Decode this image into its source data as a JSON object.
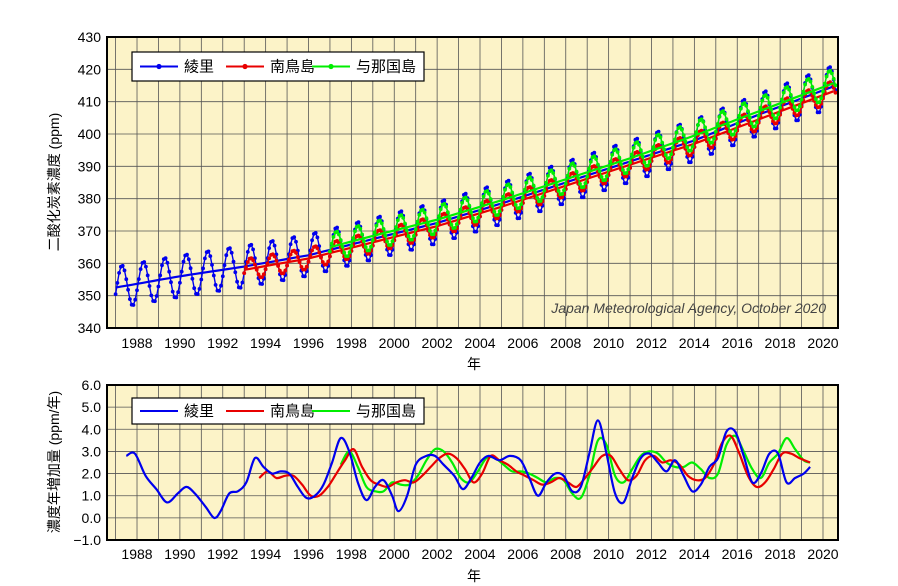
{
  "colors": {
    "background": "#fcf3c8",
    "grid": "#555555",
    "frame": "#000000",
    "ryori": "#0000ee",
    "minamitorishima": "#e80000",
    "yonaguni": "#00ee00"
  },
  "chart_data": [
    {
      "type": "line",
      "xlabel": "年",
      "ylabel": "二酸化炭素濃度 (ppm)",
      "credit": "Japan Meteorological Agency, October 2020",
      "xlim": [
        1986.6,
        2020.7
      ],
      "ylim": [
        340,
        430
      ],
      "grid": true,
      "legend_position": "top-left",
      "x_ticks": [
        "1988",
        "1990",
        "1992",
        "1994",
        "1996",
        "1998",
        "2000",
        "2002",
        "2004",
        "2006",
        "2008",
        "2010",
        "2012",
        "2014",
        "2016",
        "2018",
        "2020"
      ],
      "y_ticks": [
        "340",
        "350",
        "360",
        "370",
        "380",
        "390",
        "400",
        "410",
        "420",
        "430"
      ],
      "series_style": "monthly mean with markers, plus smoothed deseasonalized trend line",
      "series": [
        {
          "name": "綾里",
          "color": "#0000ee",
          "marker": "circle",
          "start": 1987.0,
          "end": 2020.6,
          "trend_points": [
            [
              1987.0,
              352.5
            ],
            [
              1990.0,
              356.0
            ],
            [
              1993.0,
              359.0
            ],
            [
              1996.0,
              362.5
            ],
            [
              1999.0,
              367.5
            ],
            [
              2002.0,
              372.5
            ],
            [
              2005.0,
              378.5
            ],
            [
              2008.0,
              385.0
            ],
            [
              2011.0,
              391.5
            ],
            [
              2014.0,
              398.0
            ],
            [
              2017.0,
              406.0
            ],
            [
              2020.6,
              415.0
            ]
          ],
          "seasonal_amplitude": 6.5
        },
        {
          "name": "南鳥島",
          "color": "#e80000",
          "marker": "circle",
          "start": 1993.0,
          "end": 2020.6,
          "trend_points": [
            [
              1993.0,
              358.0
            ],
            [
              1996.0,
              361.5
            ],
            [
              1999.0,
              366.5
            ],
            [
              2002.0,
              371.5
            ],
            [
              2005.0,
              377.5
            ],
            [
              2008.0,
              384.0
            ],
            [
              2011.0,
              390.5
            ],
            [
              2014.0,
              397.0
            ],
            [
              2017.0,
              404.5
            ],
            [
              2020.6,
              413.5
            ]
          ],
          "seasonal_amplitude": 3.3
        },
        {
          "name": "与那国島",
          "color": "#00ee00",
          "marker": "circle",
          "start": 1997.0,
          "end": 2020.6,
          "trend_points": [
            [
              1997.0,
              365.0
            ],
            [
              1999.0,
              368.5
            ],
            [
              2002.0,
              373.5
            ],
            [
              2005.0,
              379.5
            ],
            [
              2008.0,
              386.0
            ],
            [
              2011.0,
              392.5
            ],
            [
              2014.0,
              399.5
            ],
            [
              2017.0,
              407.0
            ],
            [
              2020.6,
              416.0
            ]
          ],
          "seasonal_amplitude": 4.3
        }
      ]
    },
    {
      "type": "line",
      "xlabel": "年",
      "ylabel": "濃度年増加量 (ppm/年)",
      "xlim": [
        1986.6,
        2020.7
      ],
      "ylim": [
        -1.0,
        6.0
      ],
      "grid": true,
      "legend_position": "top-left",
      "x_ticks": [
        "1988",
        "1990",
        "1992",
        "1994",
        "1996",
        "1998",
        "2000",
        "2002",
        "2004",
        "2006",
        "2008",
        "2010",
        "2012",
        "2014",
        "2016",
        "2018",
        "2020"
      ],
      "y_ticks": [
        "−1.0",
        "0.0",
        "1.0",
        "2.0",
        "3.0",
        "4.0",
        "5.0",
        "6.0"
      ],
      "series": [
        {
          "name": "綾里",
          "color": "#0000ee",
          "x": [
            1987.5,
            1987.9,
            1988.4,
            1988.9,
            1989.4,
            1989.9,
            1990.3,
            1990.7,
            1991.2,
            1991.6,
            1991.9,
            1992.3,
            1992.7,
            1993.1,
            1993.5,
            1993.9,
            1994.3,
            1994.7,
            1995.1,
            1995.5,
            1995.9,
            1996.3,
            1996.7,
            1997.1,
            1997.5,
            1997.9,
            1998.3,
            1998.7,
            1999.1,
            1999.5,
            1999.9,
            2000.2,
            2000.6,
            2001.0,
            2001.5,
            2001.9,
            2002.3,
            2002.8,
            2003.2,
            2003.6,
            2004.0,
            2004.4,
            2004.9,
            2005.4,
            2005.9,
            2006.3,
            2006.7,
            2007.1,
            2007.5,
            2007.9,
            2008.3,
            2008.7,
            2009.1,
            2009.5,
            2009.9,
            2010.3,
            2010.7,
            2011.1,
            2011.5,
            2011.9,
            2012.3,
            2012.7,
            2013.1,
            2013.5,
            2013.9,
            2014.3,
            2014.7,
            2015.1,
            2015.5,
            2015.9,
            2016.3,
            2016.7,
            2017.1,
            2017.5,
            2017.9,
            2018.3,
            2018.7,
            2019.1,
            2019.4
          ],
          "values": [
            2.8,
            2.9,
            1.9,
            1.3,
            0.7,
            1.1,
            1.4,
            1.1,
            0.5,
            0.0,
            0.3,
            1.1,
            1.2,
            1.6,
            2.7,
            2.3,
            2.0,
            2.1,
            2.0,
            1.4,
            0.9,
            1.0,
            1.5,
            2.5,
            3.6,
            3.0,
            1.6,
            0.8,
            1.4,
            1.7,
            1.0,
            0.3,
            1.0,
            2.4,
            2.8,
            2.8,
            2.4,
            1.9,
            1.3,
            1.8,
            2.5,
            2.8,
            2.6,
            2.8,
            2.6,
            1.8,
            1.0,
            1.6,
            2.0,
            1.9,
            1.2,
            1.4,
            2.9,
            4.4,
            2.9,
            1.1,
            0.7,
            1.8,
            2.7,
            2.9,
            2.5,
            2.1,
            2.6,
            1.9,
            1.2,
            1.5,
            2.3,
            2.7,
            3.9,
            3.9,
            2.8,
            1.6,
            2.0,
            2.9,
            2.9,
            1.6,
            1.8,
            2.0,
            2.3
          ]
        },
        {
          "name": "南鳥島",
          "color": "#e80000",
          "x": [
            1993.7,
            1994.1,
            1994.5,
            1994.9,
            1995.3,
            1995.7,
            1996.1,
            1996.5,
            1996.9,
            1997.3,
            1997.7,
            1998.1,
            1998.5,
            1998.9,
            1999.3,
            1999.7,
            2000.1,
            2000.5,
            2000.9,
            2001.3,
            2001.7,
            2002.1,
            2002.5,
            2002.9,
            2003.3,
            2003.7,
            2004.1,
            2004.5,
            2004.9,
            2005.3,
            2005.7,
            2006.1,
            2006.5,
            2006.9,
            2007.3,
            2007.7,
            2008.1,
            2008.5,
            2008.9,
            2009.3,
            2009.7,
            2010.1,
            2010.5,
            2010.9,
            2011.3,
            2011.7,
            2012.1,
            2012.5,
            2012.9,
            2013.3,
            2013.7,
            2014.1,
            2014.5,
            2014.9,
            2015.3,
            2015.7,
            2016.1,
            2016.5,
            2016.9,
            2017.3,
            2017.7,
            2018.1,
            2018.5,
            2018.9,
            2019.4
          ],
          "values": [
            1.8,
            2.1,
            1.8,
            1.9,
            1.9,
            1.5,
            1.0,
            1.0,
            1.4,
            2.0,
            2.6,
            3.1,
            2.3,
            1.7,
            1.5,
            1.4,
            1.6,
            1.7,
            1.6,
            1.9,
            2.3,
            2.7,
            2.9,
            2.7,
            2.2,
            1.6,
            2.0,
            2.8,
            2.6,
            2.4,
            2.1,
            1.9,
            1.7,
            1.5,
            1.6,
            1.8,
            1.6,
            1.4,
            1.8,
            2.3,
            2.8,
            2.8,
            2.2,
            1.7,
            1.9,
            2.6,
            2.8,
            2.5,
            2.6,
            2.4,
            1.9,
            1.7,
            1.8,
            2.4,
            3.4,
            3.7,
            2.9,
            1.9,
            1.4,
            1.6,
            2.2,
            2.9,
            2.9,
            2.7,
            2.5
          ]
        },
        {
          "name": "与那国島",
          "color": "#00ee00",
          "x": [
            1997.5,
            1997.9,
            1998.3,
            1998.7,
            1999.1,
            1999.5,
            1999.9,
            2000.3,
            2000.7,
            2001.1,
            2001.5,
            2001.9,
            2002.3,
            2002.7,
            2003.1,
            2003.5,
            2003.9,
            2004.3,
            2004.7,
            2005.1,
            2005.5,
            2005.9,
            2006.3,
            2006.7,
            2007.1,
            2007.5,
            2007.9,
            2008.3,
            2008.7,
            2009.1,
            2009.5,
            2009.9,
            2010.3,
            2010.7,
            2011.1,
            2011.5,
            2011.9,
            2012.3,
            2012.7,
            2013.1,
            2013.5,
            2013.9,
            2014.3,
            2014.7,
            2015.1,
            2015.5,
            2015.9,
            2016.3,
            2016.7,
            2017.1,
            2017.5,
            2017.9,
            2018.3,
            2018.7,
            2019.1,
            2019.4
          ],
          "values": [
            2.4,
            3.0,
            2.3,
            1.4,
            1.2,
            1.2,
            1.6,
            1.5,
            1.5,
            1.9,
            2.6,
            3.1,
            3.0,
            2.5,
            1.8,
            1.6,
            2.1,
            2.7,
            2.7,
            2.4,
            2.1,
            2.1,
            2.0,
            1.8,
            1.6,
            1.8,
            1.7,
            1.1,
            0.9,
            1.9,
            3.5,
            3.3,
            1.9,
            1.6,
            2.2,
            2.8,
            3.0,
            2.9,
            2.5,
            2.3,
            2.3,
            2.5,
            2.2,
            1.8,
            2.0,
            3.3,
            3.7,
            3.0,
            2.2,
            1.8,
            2.5,
            2.9,
            3.6,
            3.1,
            2.6,
            2.5
          ]
        }
      ]
    }
  ]
}
